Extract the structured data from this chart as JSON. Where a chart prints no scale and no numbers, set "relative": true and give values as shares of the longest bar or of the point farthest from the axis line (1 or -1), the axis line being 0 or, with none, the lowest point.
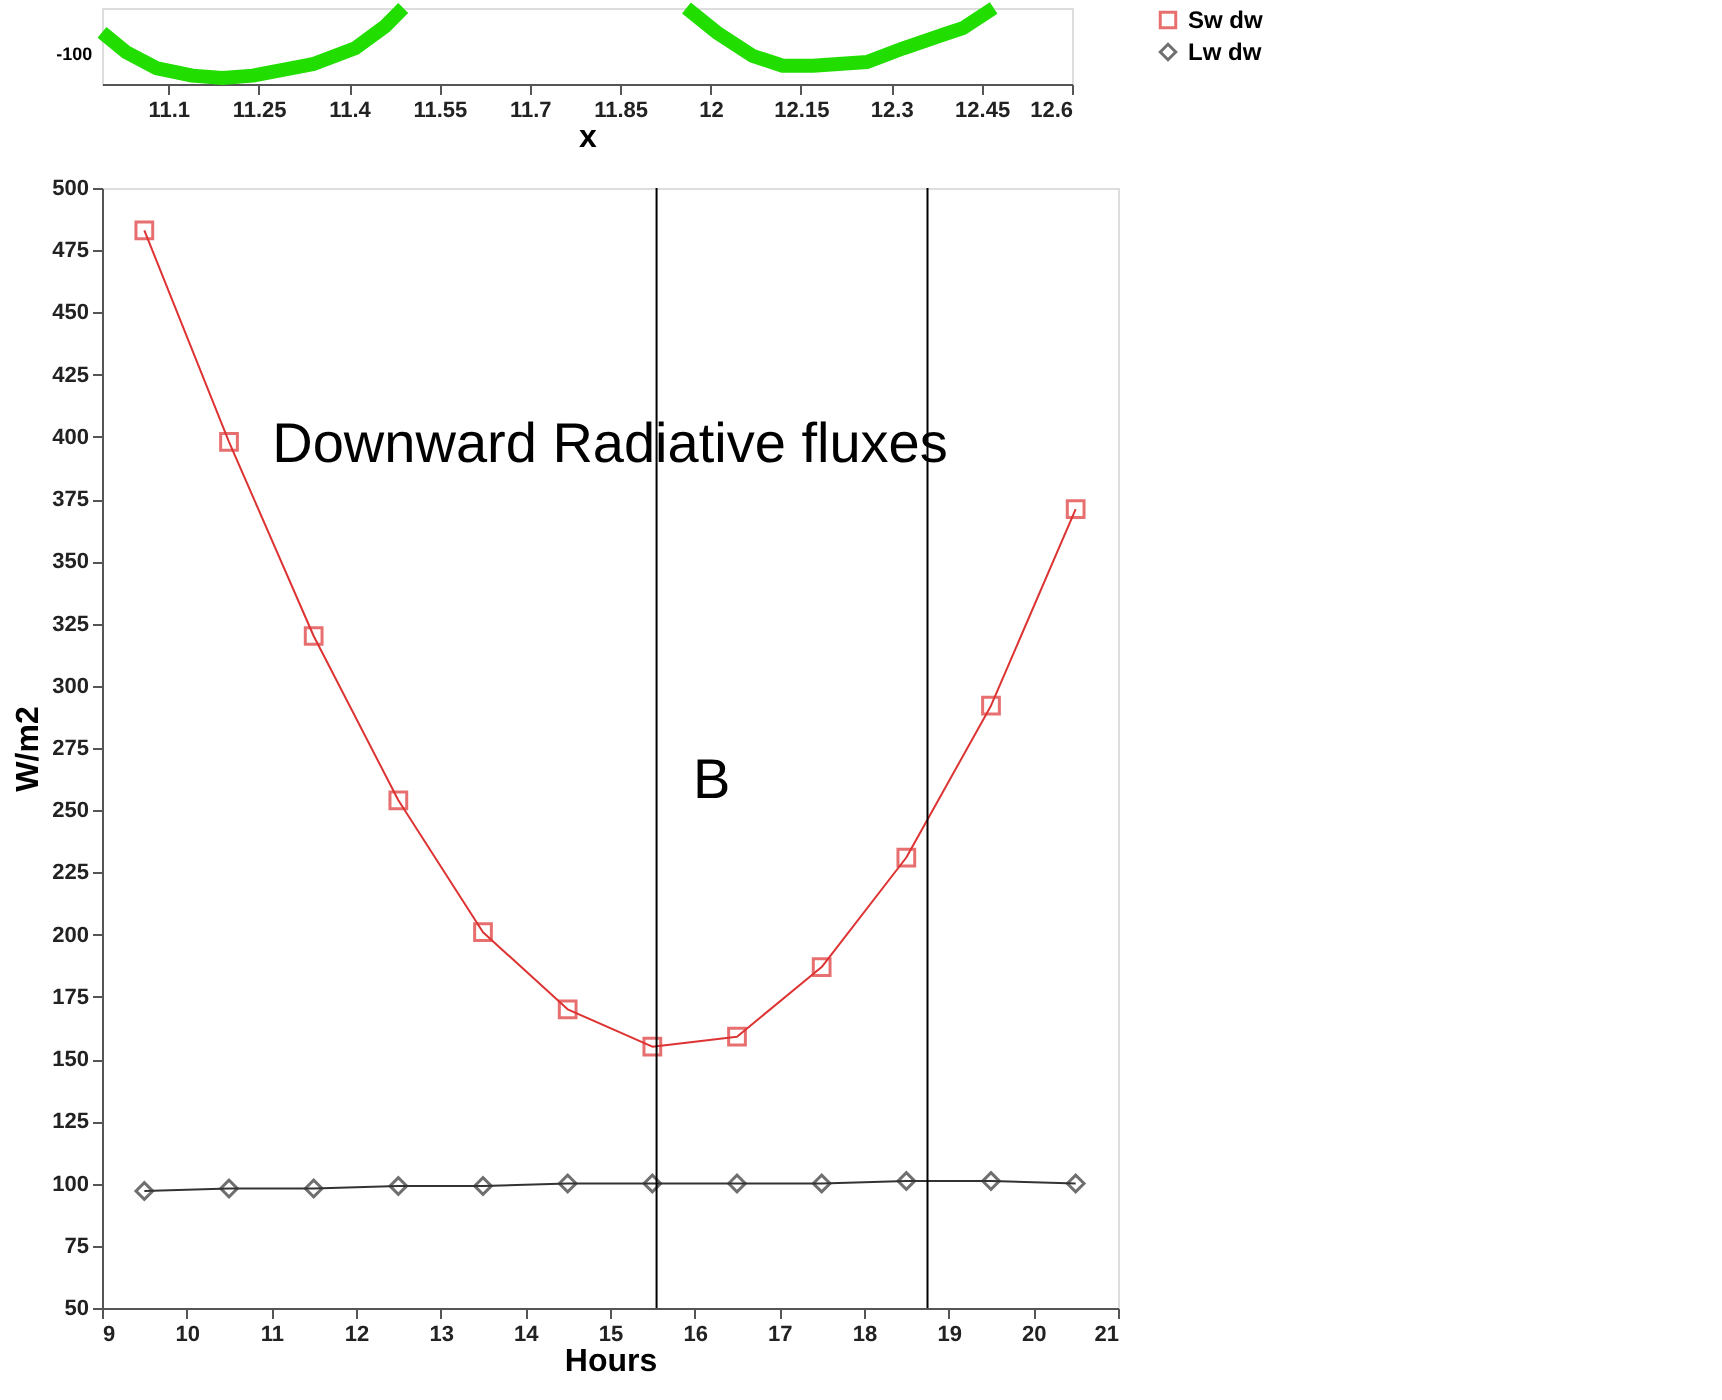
{
  "chart_data": [
    {
      "type": "line",
      "relative": true,
      "xlabel": "x",
      "xlim": [
        10.99,
        12.6
      ],
      "xticks": [
        11.1,
        11.25,
        11.4,
        11.55,
        11.7,
        11.85,
        12,
        12.15,
        12.3,
        12.45,
        12.6
      ],
      "grid": false,
      "marker": "none",
      "annotations": [
        "-100"
      ],
      "series": [
        {
          "color": "#22dd00",
          "x": [
            10.99,
            11.03,
            11.08,
            11.14,
            11.19,
            11.24,
            11.34,
            11.41,
            11.46,
            11.49,
            11.7,
            11.96,
            12.01,
            12.07,
            12.12,
            12.17,
            12.26,
            12.32,
            12.39,
            12.42,
            12.47
          ],
          "values": [
            0.68,
            0.42,
            0.21,
            0.11,
            0.08,
            0.11,
            0.26,
            0.47,
            0.76,
            1,
            null,
            1,
            0.68,
            0.37,
            0.24,
            0.24,
            0.29,
            0.47,
            0.66,
            0.74,
            1
          ]
        }
      ]
    },
    {
      "type": "line",
      "xlabel": "Hours",
      "ylabel": "W/m2",
      "xlim": [
        9,
        21
      ],
      "ylim": [
        50,
        500
      ],
      "xticks": [
        9,
        10,
        11,
        12,
        13,
        14,
        15,
        16,
        17,
        18,
        19,
        20,
        21
      ],
      "yticks": [
        50,
        75,
        100,
        125,
        150,
        175,
        200,
        225,
        250,
        275,
        300,
        325,
        350,
        375,
        400,
        425,
        450,
        475,
        500
      ],
      "grid": false,
      "legend": "right",
      "x": [
        9.5,
        10.5,
        11.5,
        12.5,
        13.5,
        14.5,
        15.5,
        16.5,
        17.5,
        18.5,
        19.5,
        20.5
      ],
      "series": [
        {
          "name": "Sw dw",
          "color": "#dd3333",
          "marker": "square",
          "values": [
            483,
            398,
            320,
            254,
            201,
            170,
            155,
            159,
            187,
            231,
            292,
            371
          ]
        },
        {
          "name": "Lw dw",
          "color": "#333333",
          "marker": "diamond",
          "values": [
            97,
            98,
            98,
            99,
            99,
            100,
            100,
            100,
            100,
            101,
            101,
            100
          ]
        }
      ],
      "ref_lines": [
        {
          "axis": "x",
          "value": 15.55,
          "color": "#000000"
        },
        {
          "axis": "x",
          "value": 18.75,
          "color": "#000000"
        }
      ],
      "annotations": [
        "Downward  Radiative fluxes",
        "B"
      ]
    }
  ]
}
